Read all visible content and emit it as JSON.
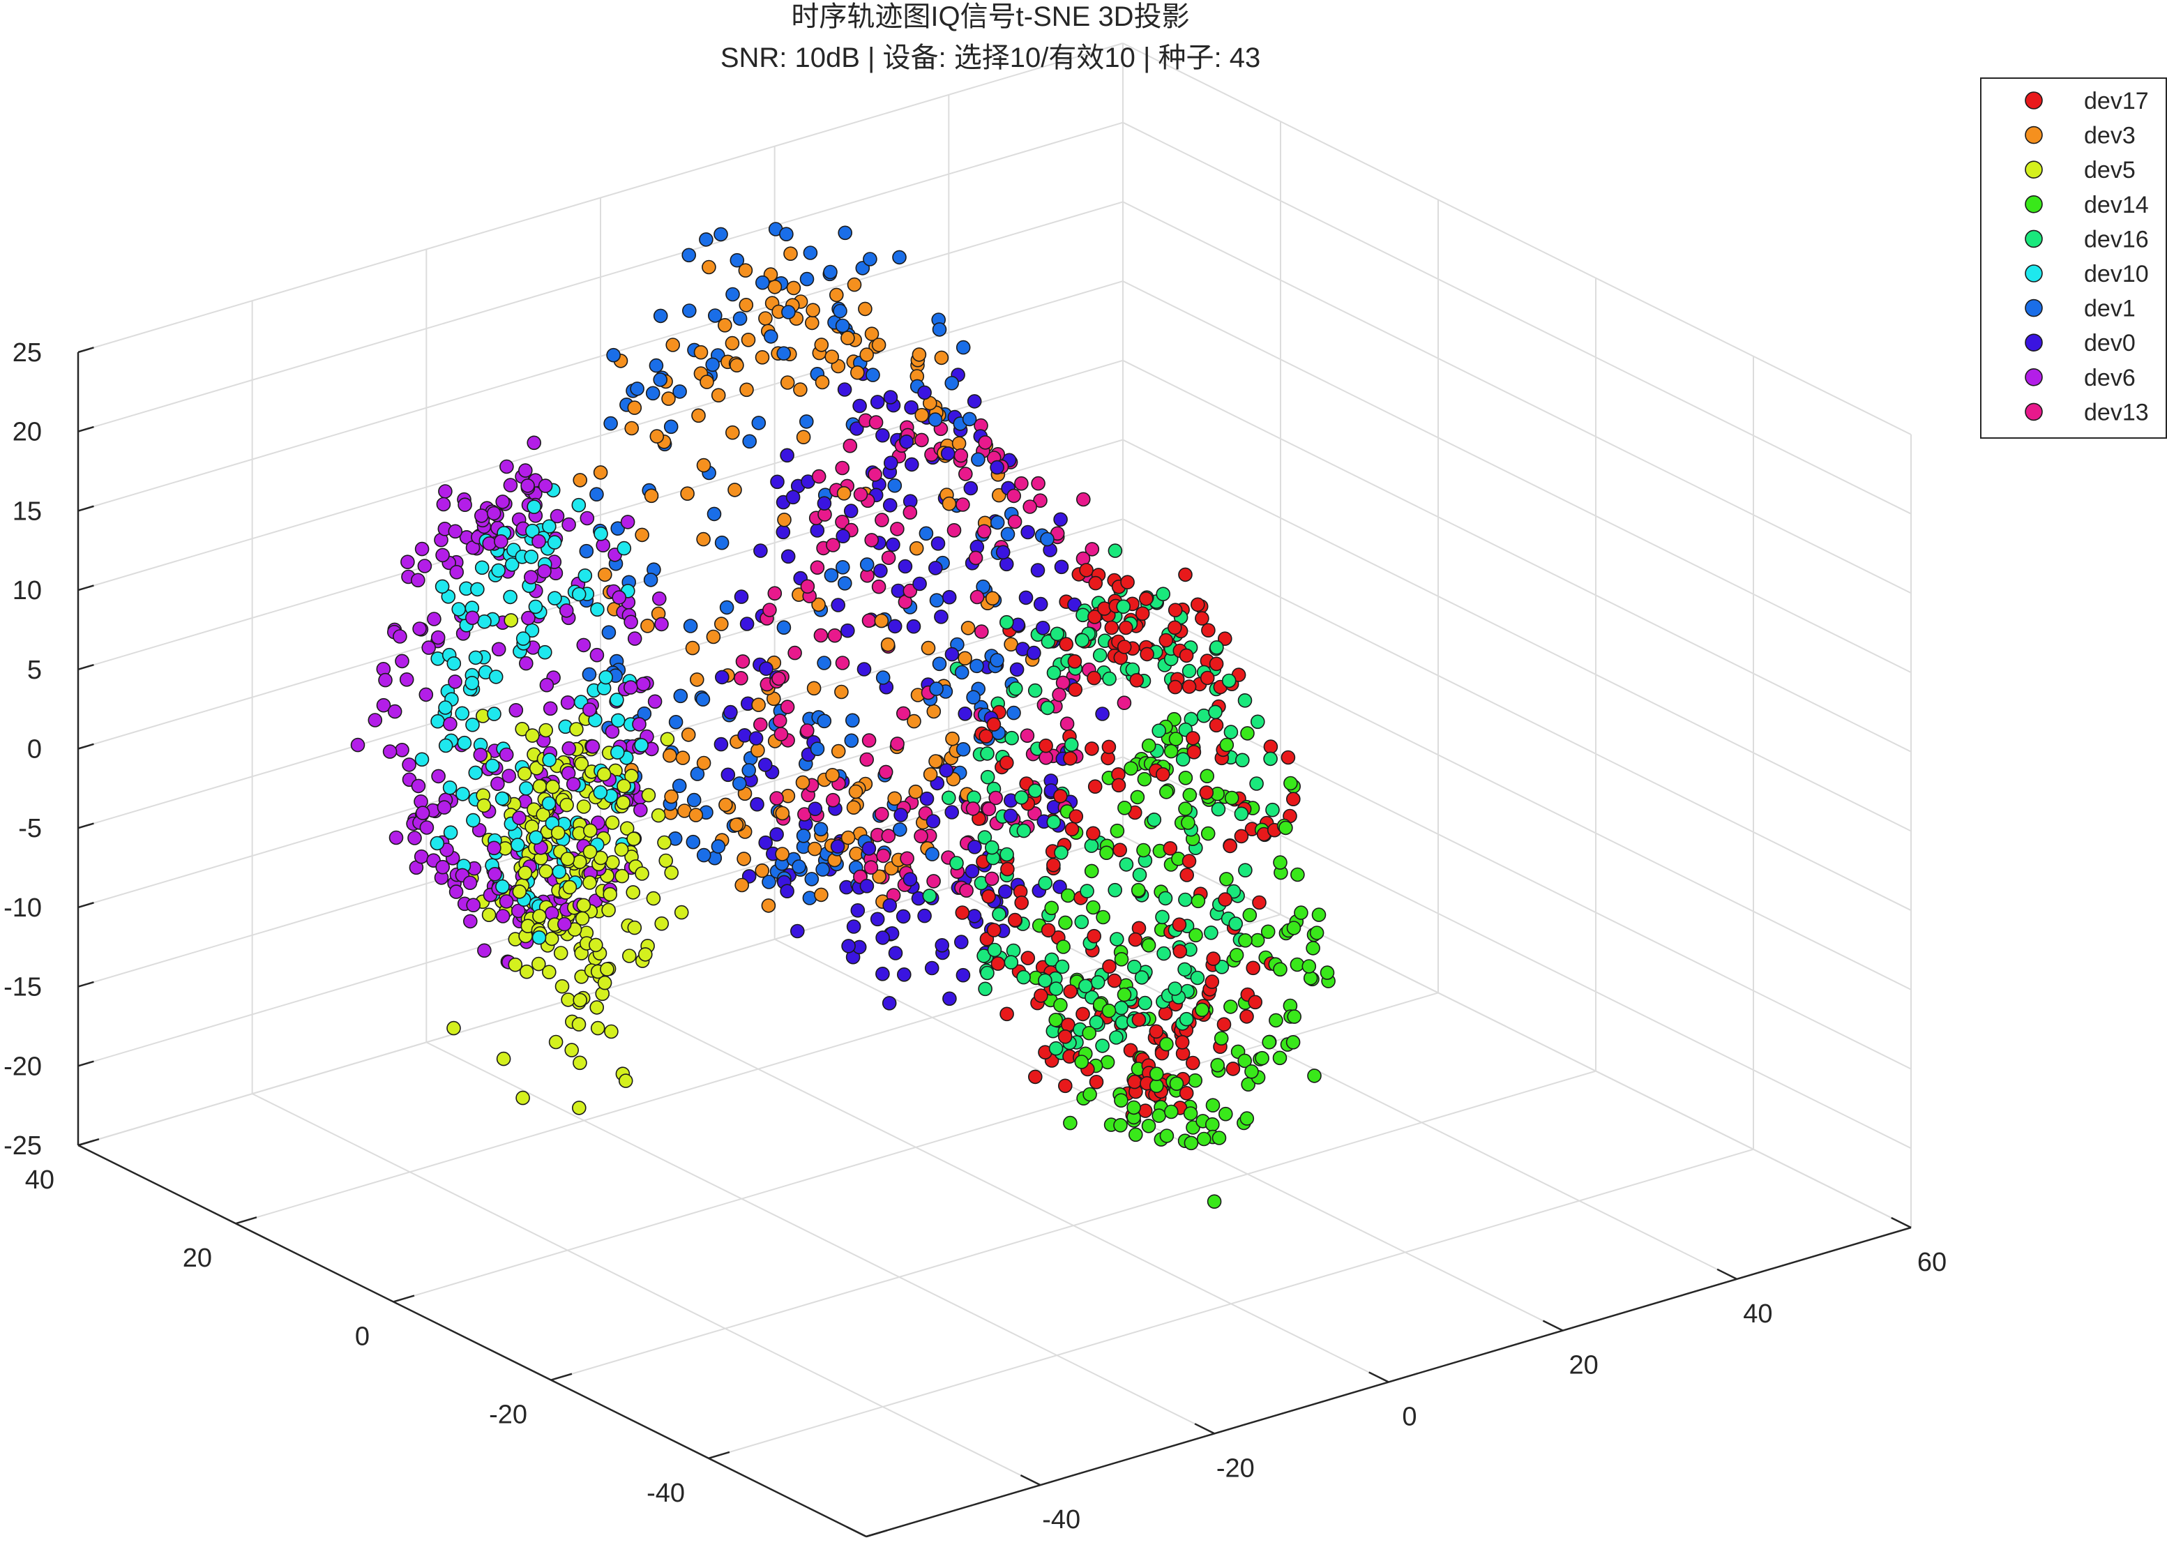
{
  "chart_data": {
    "type": "scatter",
    "projection": "3d",
    "title": "时序轨迹图IQ信号t-SNE 3D投影",
    "subtitle": "SNR: 10dB | 设备: 选择10/有效10 | 种子: 43",
    "xlabel": "",
    "ylabel": "",
    "zlabel": "",
    "xlim": [
      -60,
      60
    ],
    "ylim": [
      -60,
      40
    ],
    "zlim": [
      -25,
      25
    ],
    "x_ticks": [
      -60,
      -40,
      -20,
      0,
      20,
      40,
      60
    ],
    "y_ticks": [
      -60,
      -40,
      -20,
      0,
      20,
      40
    ],
    "z_ticks": [
      -25,
      -20,
      -15,
      -10,
      -5,
      0,
      5,
      10,
      15,
      20,
      25
    ],
    "grid": true,
    "legend_position": "top-right",
    "series": [
      {
        "name": "dev17",
        "color": "#e8191b",
        "clusters": [
          {
            "cx": 12,
            "cy": -14,
            "cz": -4,
            "rx": 13,
            "ry": 13,
            "rz": 16,
            "shape": "ring",
            "n": 230
          }
        ]
      },
      {
        "name": "dev3",
        "color": "#f5901e",
        "clusters": [
          {
            "cx": -2,
            "cy": 12,
            "cz": 8,
            "rx": 18,
            "ry": 18,
            "rz": 18,
            "shape": "ring",
            "n": 190
          }
        ]
      },
      {
        "name": "dev5",
        "color": "#d4f01e",
        "clusters": [
          {
            "cx": -38,
            "cy": 2,
            "cz": -2,
            "rx": 6,
            "ry": 6,
            "rz": 9,
            "shape": "blob",
            "n": 210
          }
        ]
      },
      {
        "name": "dev14",
        "color": "#39e81a",
        "clusters": [
          {
            "cx": 14,
            "cy": -18,
            "cz": -10,
            "rx": 13,
            "ry": 12,
            "rz": 12,
            "shape": "ring",
            "n": 190
          }
        ]
      },
      {
        "name": "dev16",
        "color": "#1ae87c",
        "clusters": [
          {
            "cx": 12,
            "cy": -12,
            "cz": -3,
            "rx": 14,
            "ry": 12,
            "rz": 14,
            "shape": "ring",
            "n": 200
          }
        ]
      },
      {
        "name": "dev10",
        "color": "#1ee8ee",
        "clusters": [
          {
            "cx": -40,
            "cy": 4,
            "cz": 8,
            "rx": 10,
            "ry": 8,
            "rz": 12,
            "shape": "ring",
            "n": 150
          }
        ]
      },
      {
        "name": "dev1",
        "color": "#1a6ee8",
        "clusters": [
          {
            "cx": 0,
            "cy": 14,
            "cz": 8,
            "rx": 20,
            "ry": 20,
            "rz": 20,
            "shape": "ring",
            "n": 200
          }
        ]
      },
      {
        "name": "dev0",
        "color": "#3a14e0",
        "clusters": [
          {
            "cx": 4,
            "cy": 6,
            "cz": 2,
            "rx": 16,
            "ry": 16,
            "rz": 18,
            "shape": "ring",
            "n": 200
          }
        ]
      },
      {
        "name": "dev6",
        "color": "#b31ee8",
        "clusters": [
          {
            "cx": -40,
            "cy": 6,
            "cz": 8,
            "rx": 13,
            "ry": 10,
            "rz": 14,
            "shape": "ring",
            "n": 250
          }
        ]
      },
      {
        "name": "dev13",
        "color": "#e8198c",
        "clusters": [
          {
            "cx": 6,
            "cy": 4,
            "cz": 4,
            "rx": 16,
            "ry": 14,
            "rz": 14,
            "shape": "ring",
            "n": 160
          }
        ]
      }
    ]
  }
}
